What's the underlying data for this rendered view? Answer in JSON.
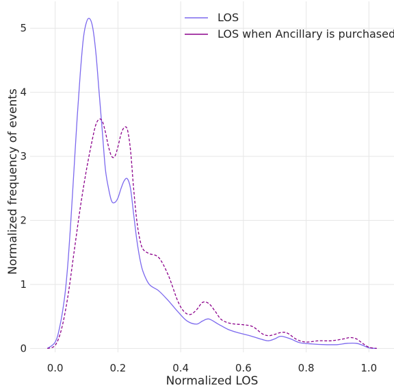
{
  "chart_data": {
    "type": "line",
    "xlabel": "Normalized LOS",
    "ylabel": "Normalized frequency of events",
    "xlim": [
      -0.08,
      1.08
    ],
    "ylim": [
      -0.06,
      5.42
    ],
    "x_ticks": [
      0.0,
      0.2,
      0.4,
      0.6,
      0.8,
      1.0
    ],
    "x_tick_labels": [
      "0.0",
      "0.2",
      "0.4",
      "0.6",
      "0.8",
      "1.0"
    ],
    "y_ticks": [
      0,
      1,
      2,
      3,
      4,
      5
    ],
    "y_tick_labels": [
      "0",
      "1",
      "2",
      "3",
      "4",
      "5"
    ],
    "grid": true,
    "legend_position": "top-right",
    "series": [
      {
        "name": "LOS",
        "color": "#7b68ee",
        "dash": "solid",
        "points": [
          [
            -0.025,
            0.0
          ],
          [
            0.0,
            0.1
          ],
          [
            0.015,
            0.35
          ],
          [
            0.03,
            0.8
          ],
          [
            0.04,
            1.3
          ],
          [
            0.05,
            2.0
          ],
          [
            0.06,
            2.8
          ],
          [
            0.07,
            3.6
          ],
          [
            0.08,
            4.3
          ],
          [
            0.09,
            4.85
          ],
          [
            0.1,
            5.1
          ],
          [
            0.11,
            5.15
          ],
          [
            0.12,
            5.0
          ],
          [
            0.13,
            4.6
          ],
          [
            0.14,
            4.0
          ],
          [
            0.15,
            3.4
          ],
          [
            0.16,
            2.8
          ],
          [
            0.17,
            2.5
          ],
          [
            0.18,
            2.3
          ],
          [
            0.19,
            2.28
          ],
          [
            0.2,
            2.35
          ],
          [
            0.21,
            2.5
          ],
          [
            0.22,
            2.62
          ],
          [
            0.23,
            2.65
          ],
          [
            0.24,
            2.5
          ],
          [
            0.25,
            2.1
          ],
          [
            0.26,
            1.7
          ],
          [
            0.27,
            1.4
          ],
          [
            0.28,
            1.2
          ],
          [
            0.3,
            1.0
          ],
          [
            0.33,
            0.9
          ],
          [
            0.36,
            0.75
          ],
          [
            0.39,
            0.58
          ],
          [
            0.42,
            0.43
          ],
          [
            0.45,
            0.38
          ],
          [
            0.47,
            0.43
          ],
          [
            0.49,
            0.46
          ],
          [
            0.52,
            0.38
          ],
          [
            0.55,
            0.3
          ],
          [
            0.58,
            0.25
          ],
          [
            0.62,
            0.2
          ],
          [
            0.66,
            0.14
          ],
          [
            0.68,
            0.12
          ],
          [
            0.7,
            0.15
          ],
          [
            0.72,
            0.19
          ],
          [
            0.75,
            0.15
          ],
          [
            0.78,
            0.09
          ],
          [
            0.82,
            0.07
          ],
          [
            0.86,
            0.06
          ],
          [
            0.9,
            0.06
          ],
          [
            0.93,
            0.08
          ],
          [
            0.96,
            0.08
          ],
          [
            0.98,
            0.05
          ],
          [
            1.0,
            0.01
          ],
          [
            1.025,
            0.0
          ]
        ]
      },
      {
        "name": "LOS when Ancillary is purchased",
        "color": "#8b008b",
        "dash": "dashed",
        "points": [
          [
            -0.025,
            0.0
          ],
          [
            0.0,
            0.05
          ],
          [
            0.02,
            0.3
          ],
          [
            0.04,
            0.8
          ],
          [
            0.06,
            1.5
          ],
          [
            0.08,
            2.2
          ],
          [
            0.1,
            2.8
          ],
          [
            0.12,
            3.3
          ],
          [
            0.13,
            3.5
          ],
          [
            0.14,
            3.58
          ],
          [
            0.15,
            3.55
          ],
          [
            0.16,
            3.38
          ],
          [
            0.17,
            3.15
          ],
          [
            0.18,
            3.0
          ],
          [
            0.19,
            3.0
          ],
          [
            0.2,
            3.15
          ],
          [
            0.21,
            3.35
          ],
          [
            0.22,
            3.45
          ],
          [
            0.23,
            3.42
          ],
          [
            0.24,
            3.1
          ],
          [
            0.25,
            2.5
          ],
          [
            0.26,
            2.0
          ],
          [
            0.27,
            1.7
          ],
          [
            0.28,
            1.55
          ],
          [
            0.3,
            1.48
          ],
          [
            0.33,
            1.42
          ],
          [
            0.36,
            1.15
          ],
          [
            0.39,
            0.75
          ],
          [
            0.41,
            0.58
          ],
          [
            0.43,
            0.53
          ],
          [
            0.45,
            0.6
          ],
          [
            0.47,
            0.72
          ],
          [
            0.49,
            0.7
          ],
          [
            0.51,
            0.58
          ],
          [
            0.53,
            0.45
          ],
          [
            0.56,
            0.39
          ],
          [
            0.6,
            0.37
          ],
          [
            0.63,
            0.34
          ],
          [
            0.66,
            0.23
          ],
          [
            0.68,
            0.2
          ],
          [
            0.7,
            0.22
          ],
          [
            0.72,
            0.25
          ],
          [
            0.74,
            0.24
          ],
          [
            0.77,
            0.14
          ],
          [
            0.8,
            0.1
          ],
          [
            0.84,
            0.12
          ],
          [
            0.88,
            0.12
          ],
          [
            0.92,
            0.15
          ],
          [
            0.94,
            0.17
          ],
          [
            0.96,
            0.15
          ],
          [
            0.98,
            0.08
          ],
          [
            1.0,
            0.02
          ],
          [
            1.025,
            0.0
          ]
        ]
      }
    ]
  }
}
